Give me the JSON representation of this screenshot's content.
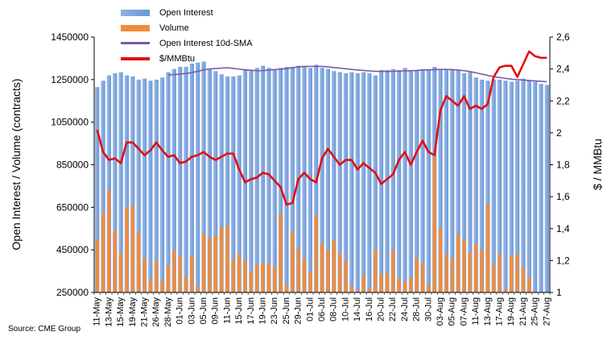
{
  "chart_data": {
    "type": "bar",
    "ylabel_left": "Open Interest / Volume (contracts)",
    "ylabel_right": "$ / MMBtu",
    "source": "Source: CME Group",
    "ylim_left": [
      250000,
      1450000
    ],
    "yticks_left": [
      "250000",
      "450000",
      "650000",
      "850000",
      "1050000",
      "1250000",
      "1450000"
    ],
    "yticks_left_values": [
      250000,
      450000,
      650000,
      850000,
      1050000,
      1250000,
      1450000
    ],
    "ylim_right": [
      1,
      2.6
    ],
    "yticks_right": [
      "1",
      "1,2",
      "1,4",
      "1,6",
      "1,8",
      "2",
      "2,2",
      "2,4",
      "2,6"
    ],
    "yticks_right_values": [
      1,
      1.2,
      1.4,
      1.6,
      1.8,
      2,
      2.2,
      2.4,
      2.6
    ],
    "x_tick_labels": [
      "11-May",
      "13-May",
      "15-May",
      "19-May",
      "21-May",
      "26-May",
      "28-May",
      "01-Jun",
      "03-Jun",
      "05-Jun",
      "09-Jun",
      "11-Jun",
      "15-Jun",
      "17-Jun",
      "19-Jun",
      "23-Jun",
      "25-Jun",
      "29-Jun",
      "01-Jul",
      "06-Jul",
      "08-Jul",
      "10-Jul",
      "14-Jul",
      "16-Jul",
      "20-Jul",
      "22-Jul",
      "24-Jul",
      "28-Jul",
      "30-Jul",
      "03-Aug",
      "05-Aug",
      "07-Aug",
      "11-Aug",
      "13-Aug",
      "17-Aug",
      "19-Aug",
      "21-Aug",
      "25-Aug",
      "27-Aug"
    ],
    "x_tick_label_indices": [
      0,
      2,
      4,
      6,
      8,
      10,
      12,
      14,
      16,
      18,
      20,
      22,
      24,
      26,
      28,
      30,
      32,
      34,
      36,
      38,
      40,
      42,
      44,
      46,
      48,
      50,
      52,
      54,
      56,
      58,
      60,
      62,
      64,
      66,
      68,
      70,
      72,
      74,
      76
    ],
    "series": [
      {
        "name": "Open Interest",
        "axis": "left",
        "kind": "bar",
        "color": "#6a97d6",
        "values": [
          1215000,
          1245000,
          1270000,
          1280000,
          1285000,
          1270000,
          1265000,
          1250000,
          1255000,
          1245000,
          1250000,
          1260000,
          1285000,
          1300000,
          1310000,
          1310000,
          1325000,
          1330000,
          1335000,
          1300000,
          1290000,
          1275000,
          1265000,
          1265000,
          1270000,
          1300000,
          1295000,
          1305000,
          1315000,
          1305000,
          1300000,
          1305000,
          1310000,
          1310000,
          1315000,
          1310000,
          1305000,
          1320000,
          1305000,
          1300000,
          1290000,
          1285000,
          1280000,
          1285000,
          1280000,
          1285000,
          1280000,
          1270000,
          1295000,
          1295000,
          1300000,
          1295000,
          1305000,
          1290000,
          1295000,
          1300000,
          1295000,
          1310000,
          1300000,
          1295000,
          1300000,
          1295000,
          1280000,
          1285000,
          1260000,
          1250000,
          1245000,
          1250000,
          1250000,
          1245000,
          1240000,
          1245000,
          1255000,
          1245000,
          1240000,
          1230000,
          1225000
        ]
      },
      {
        "name": "Volume",
        "axis": "left",
        "kind": "bar",
        "color": "#f08c3c",
        "values": [
          500000,
          620000,
          730000,
          540000,
          435000,
          650000,
          660000,
          530000,
          410000,
          310000,
          400000,
          305000,
          375000,
          450000,
          425000,
          325000,
          420000,
          280000,
          525000,
          505000,
          520000,
          555000,
          560000,
          405000,
          430000,
          400000,
          350000,
          380000,
          390000,
          385000,
          370000,
          620000,
          285000,
          535000,
          455000,
          410000,
          345000,
          610000,
          480000,
          450000,
          495000,
          435000,
          400000,
          280000,
          260000,
          330000,
          270000,
          450000,
          335000,
          340000,
          450000,
          320000,
          300000,
          320000,
          410000,
          390000,
          285000,
          885000,
          550000,
          430000,
          410000,
          520000,
          500000,
          440000,
          480000,
          450000,
          665000,
          380000,
          430000,
          265000,
          420000,
          430000,
          365000,
          320000,
          250000,
          250000,
          250000
        ]
      },
      {
        "name": "Open Interest 10d-SMA",
        "axis": "left",
        "kind": "line",
        "color": "#7b5aa6",
        "values": [
          null,
          null,
          null,
          null,
          null,
          null,
          null,
          null,
          null,
          null,
          null,
          null,
          1272000,
          1274000,
          1276000,
          1279000,
          1283000,
          1289000,
          1296000,
          1300000,
          1302000,
          1304000,
          1306000,
          1303000,
          1299000,
          1296000,
          1294000,
          1292000,
          1292000,
          1295000,
          1297000,
          1299000,
          1302000,
          1306000,
          1310000,
          1312000,
          1312000,
          1312000,
          1312000,
          1310000,
          1307000,
          1304000,
          1301000,
          1298000,
          1295000,
          1293000,
          1291000,
          1289000,
          1289000,
          1289000,
          1289000,
          1290000,
          1291000,
          1292000,
          1293000,
          1295000,
          1296000,
          1297000,
          1298000,
          1298000,
          1297000,
          1295000,
          1292000,
          1288000,
          1282000,
          1276000,
          1270000,
          1264000,
          1260000,
          1256000,
          1252000,
          1250000,
          1248000,
          1246000,
          1244000,
          1242000,
          1240000
        ]
      },
      {
        "name": "$/MMBtu",
        "axis": "right",
        "kind": "line",
        "color": "#e01010",
        "values": [
          2.02,
          1.88,
          1.83,
          1.84,
          1.81,
          1.94,
          1.94,
          1.9,
          1.86,
          1.89,
          1.94,
          1.89,
          1.85,
          1.86,
          1.81,
          1.82,
          1.85,
          1.86,
          1.88,
          1.85,
          1.83,
          1.85,
          1.87,
          1.87,
          1.77,
          1.69,
          1.71,
          1.72,
          1.75,
          1.74,
          1.7,
          1.66,
          1.55,
          1.56,
          1.71,
          1.75,
          1.71,
          1.69,
          1.84,
          1.9,
          1.85,
          1.8,
          1.83,
          1.83,
          1.77,
          1.81,
          1.78,
          1.75,
          1.68,
          1.71,
          1.74,
          1.83,
          1.88,
          1.8,
          1.88,
          1.95,
          1.88,
          1.86,
          2.14,
          2.23,
          2.2,
          2.17,
          2.23,
          2.15,
          2.17,
          2.15,
          2.18,
          2.35,
          2.41,
          2.42,
          2.42,
          2.35,
          2.43,
          2.51,
          2.48,
          2.47,
          2.47
        ]
      }
    ]
  }
}
